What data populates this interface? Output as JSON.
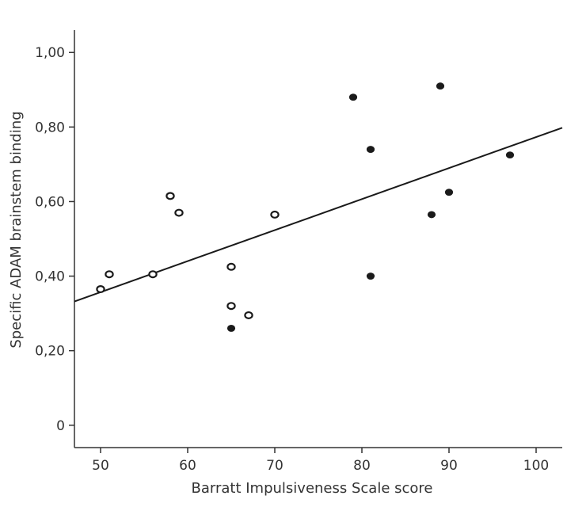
{
  "chart_data": {
    "type": "scatter",
    "title": "",
    "xlabel": "Barratt Impulsiveness Scale score",
    "ylabel": "Specific ADAM brainstem binding",
    "xlim": [
      47,
      103
    ],
    "ylim": [
      -0.06,
      1.06
    ],
    "x_ticks": [
      50,
      60,
      70,
      80,
      90,
      100
    ],
    "x_tick_labels": [
      "50",
      "60",
      "70",
      "80",
      "90",
      "100"
    ],
    "y_ticks": [
      0,
      0.2,
      0.4,
      0.6,
      0.8,
      1.0
    ],
    "y_tick_labels": [
      "0",
      "0,20",
      "0,40",
      "0,60",
      "0,80",
      "1,00"
    ],
    "grid": false,
    "legend": "none",
    "colors": {
      "ink": "#1a1a1a",
      "axis": "#333333",
      "open_fill": "#ffffff"
    },
    "series": [
      {
        "marker": "open-circle",
        "x": [
          50,
          51,
          56,
          58,
          59,
          65,
          65,
          67,
          70
        ],
        "y": [
          0.365,
          0.405,
          0.405,
          0.615,
          0.57,
          0.425,
          0.32,
          0.295,
          0.565
        ]
      },
      {
        "marker": "filled-circle",
        "x": [
          65,
          79,
          81,
          81,
          88,
          89,
          90,
          97
        ],
        "y": [
          0.26,
          0.88,
          0.74,
          0.4,
          0.565,
          0.91,
          0.625,
          0.725
        ]
      }
    ],
    "regression_line": {
      "x": [
        47,
        103
      ],
      "y": [
        0.332,
        0.798
      ]
    }
  }
}
